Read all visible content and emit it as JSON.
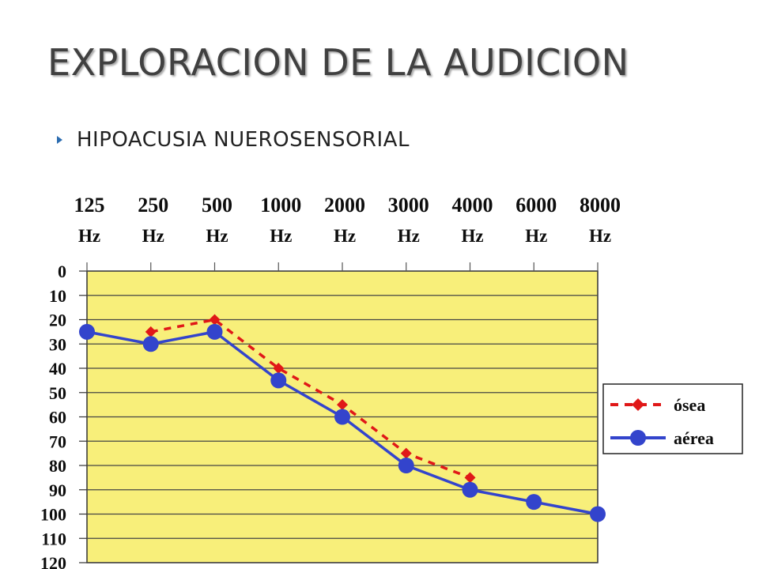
{
  "slide": {
    "title": "EXPLORACION DE LA AUDICION",
    "bullet": "HIPOACUSIA NUEROSENSORIAL",
    "bullet_icon": "triangle-right-icon"
  },
  "chart_data": {
    "type": "line",
    "title": "",
    "xlabel": "",
    "ylabel": "",
    "x_labels": [
      {
        "value": "125",
        "unit": "Hz"
      },
      {
        "value": "250",
        "unit": "Hz"
      },
      {
        "value": "500",
        "unit": "Hz"
      },
      {
        "value": "1000",
        "unit": "Hz"
      },
      {
        "value": "2000",
        "unit": "Hz"
      },
      {
        "value": "3000",
        "unit": "Hz"
      },
      {
        "value": "4000",
        "unit": "Hz"
      },
      {
        "value": "6000",
        "unit": "Hz"
      },
      {
        "value": "8000",
        "unit": "Hz"
      }
    ],
    "y_ticks": [
      0,
      10,
      20,
      30,
      40,
      50,
      60,
      70,
      80,
      90,
      100,
      110,
      120
    ],
    "ylim": [
      0,
      120
    ],
    "y_inverted": true,
    "grid": true,
    "plot_background": "#f8ef7a",
    "legend_position": "right",
    "series": [
      {
        "name": "ósea",
        "color": "#e01818",
        "line_style": "dashed",
        "marker": "diamond",
        "points": [
          [
            1,
            25
          ],
          [
            2,
            20
          ],
          [
            3,
            40
          ],
          [
            4,
            55
          ],
          [
            5,
            75
          ],
          [
            6,
            85
          ]
        ]
      },
      {
        "name": "aérea",
        "color": "#3344cc",
        "line_style": "solid",
        "marker": "circle",
        "points": [
          [
            0,
            25
          ],
          [
            1,
            30
          ],
          [
            2,
            25
          ],
          [
            3,
            45
          ],
          [
            4,
            60
          ],
          [
            5,
            80
          ],
          [
            6,
            90
          ],
          [
            7,
            95
          ],
          [
            8,
            100
          ]
        ]
      }
    ]
  }
}
